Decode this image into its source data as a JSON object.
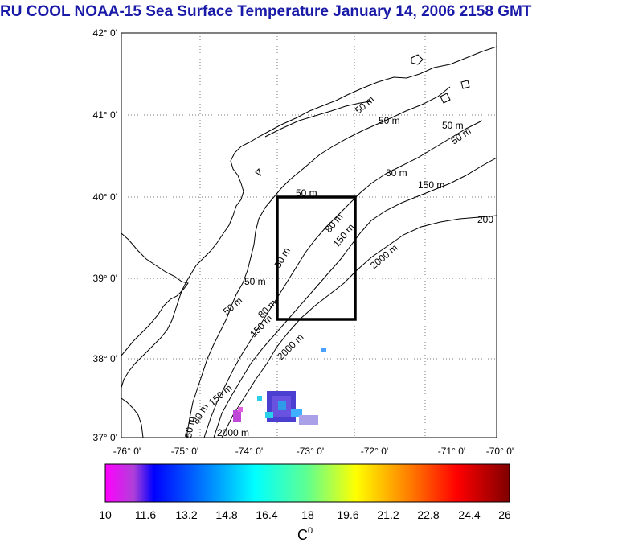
{
  "title": "RU COOL  NOAA-15 Sea Surface Temperature January 14, 2006 2158 GMT",
  "colors": {
    "title": "#1a1aa8",
    "box": "#000000",
    "grid": "#777777"
  },
  "map": {
    "lon_labels": [
      "-76° 0'",
      "-75° 0'",
      "-74° 0'",
      "-73° 0'",
      "-72° 0'",
      "-71° 0'",
      "-70° 0'"
    ],
    "lat_labels": [
      "42° 0'",
      "41° 0'",
      "40° 0'",
      "39° 0'",
      "38° 0'",
      "37° 0'"
    ],
    "lon_range": [
      -76,
      -70
    ],
    "lat_range": [
      37,
      42
    ],
    "study_box": {
      "lon": [
        -73.5,
        -72.5
      ],
      "lat": [
        38.5,
        40.0
      ]
    },
    "contour_labels": [
      "50 m",
      "50 m",
      "50 m",
      "50 m",
      "80 m",
      "80 m",
      "80 m",
      "50 m",
      "150 m",
      "150 m",
      "150 m",
      "150 m",
      "2000 m",
      "2000 m",
      "200",
      "2000 m",
      "50 m",
      "80 m",
      "50 m",
      "50 m",
      "50 m"
    ]
  },
  "colorbar": {
    "ticks": [
      "10",
      "11.6",
      "13.2",
      "14.8",
      "16.4",
      "18",
      "19.6",
      "21.2",
      "22.8",
      "24.4",
      "26"
    ],
    "range": [
      10,
      26
    ],
    "unit_label": "C",
    "unit_superscript": "0"
  }
}
